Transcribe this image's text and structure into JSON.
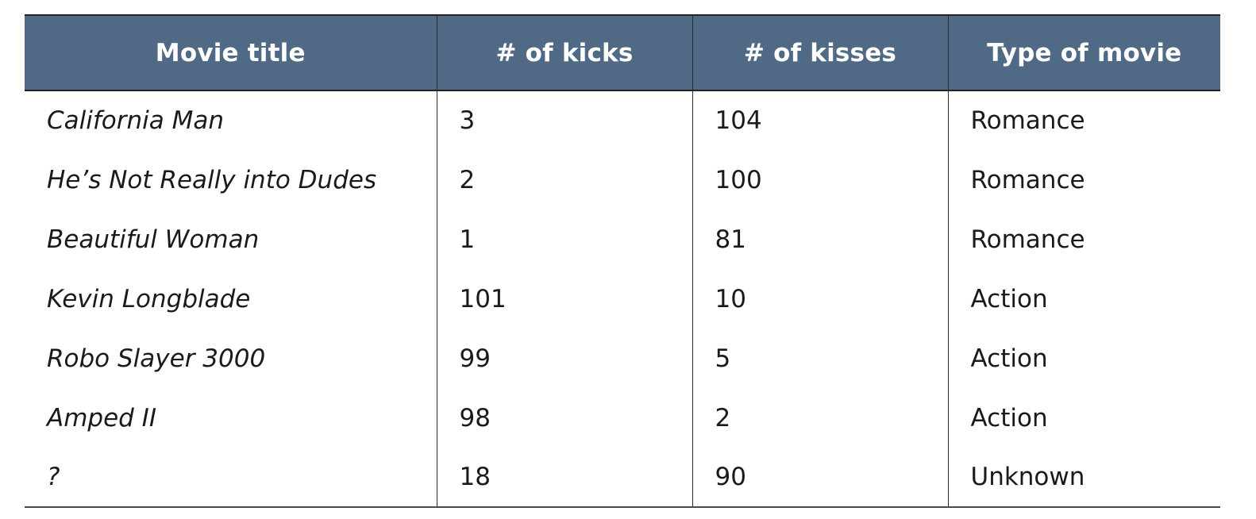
{
  "table": {
    "headers": [
      "Movie title",
      "# of kicks",
      "# of kisses",
      "Type of movie"
    ],
    "rows": [
      [
        "California Man",
        "3",
        "104",
        "Romance"
      ],
      [
        "He’s Not Really into Dudes",
        "2",
        "100",
        "Romance"
      ],
      [
        "Beautiful Woman",
        "1",
        "81",
        "Romance"
      ],
      [
        "Kevin Longblade",
        "101",
        "10",
        "Action"
      ],
      [
        "Robo Slayer 3000",
        "99",
        "5",
        "Action"
      ],
      [
        "Amped II",
        "98",
        "2",
        "Action"
      ],
      [
        "?",
        "18",
        "90",
        "Unknown"
      ]
    ]
  },
  "colors": {
    "header_background": "#506a86",
    "header_text": "#ffffff",
    "body_text": "#1a1a1a"
  }
}
